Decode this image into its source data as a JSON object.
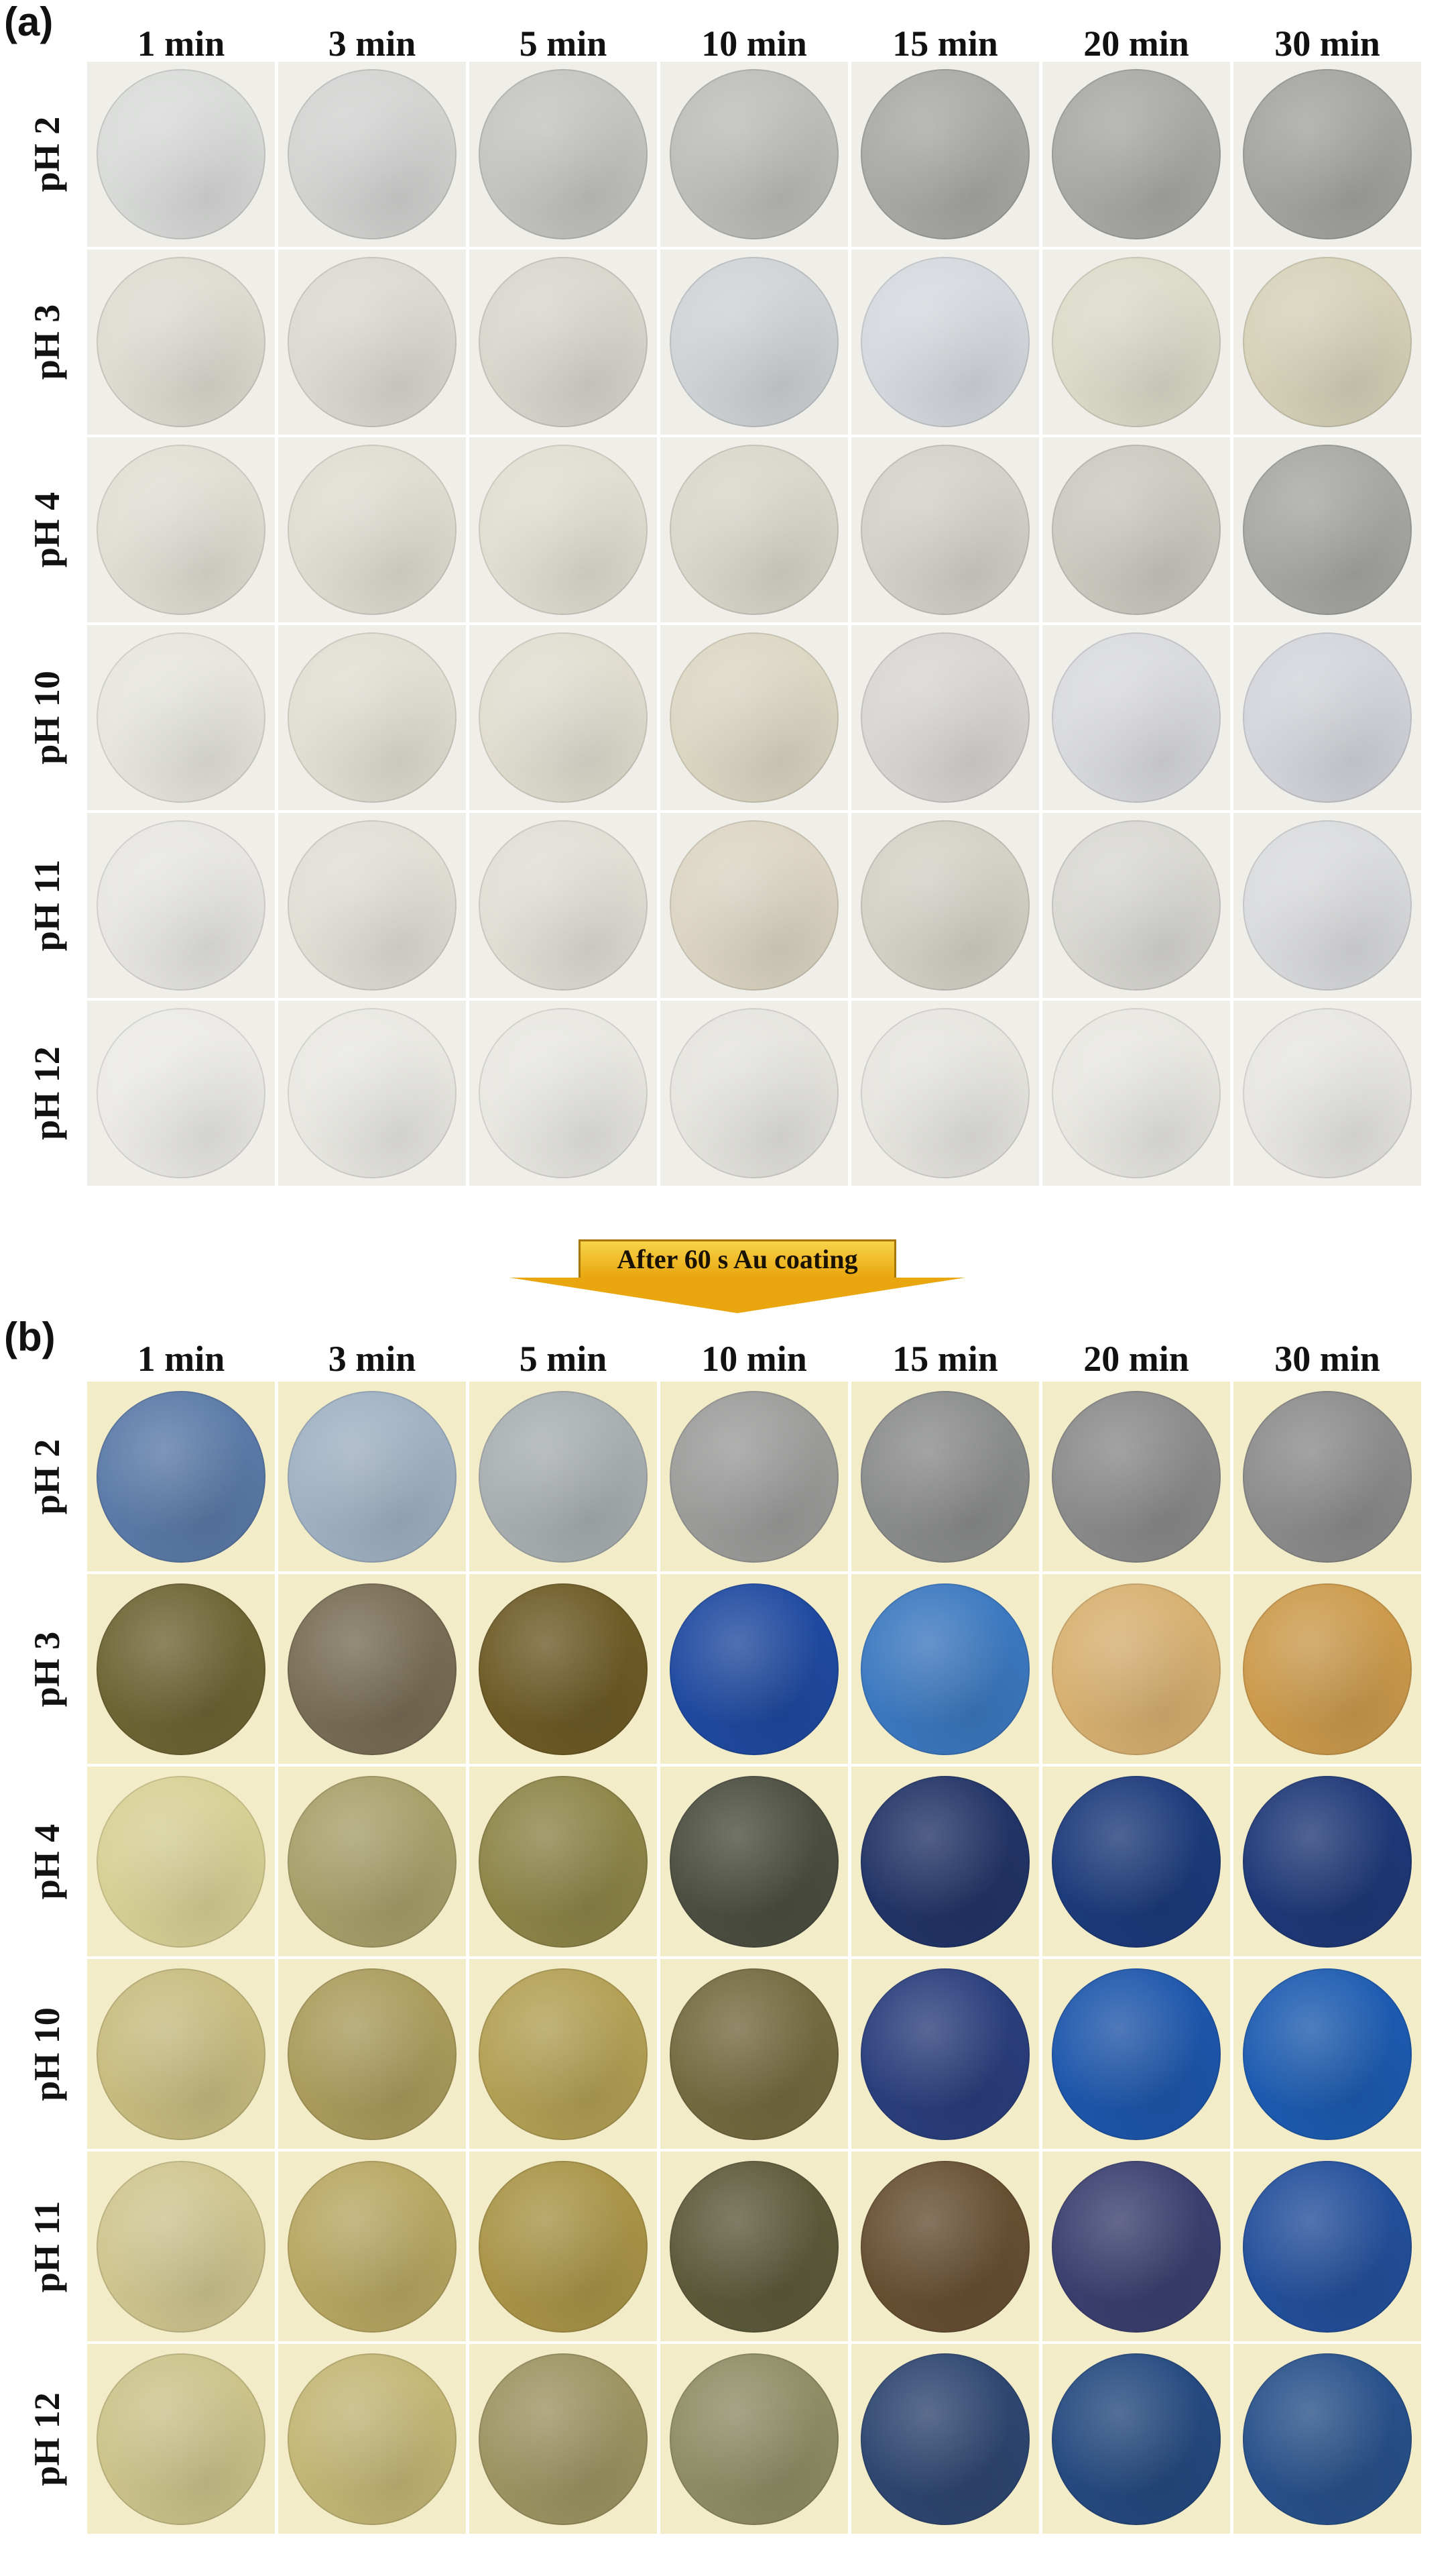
{
  "panel_a": {
    "label": "(a)",
    "columns": [
      "1 min",
      "3 min",
      "5 min",
      "10 min",
      "15 min",
      "20 min",
      "30 min"
    ],
    "rows": [
      "pH 2",
      "pH 3",
      "pH 4",
      "pH 10",
      "pH 11",
      "pH 12"
    ]
  },
  "arrow": {
    "label": "After 60 s Au coating"
  },
  "panel_b": {
    "label": "(b)",
    "columns": [
      "1 min",
      "3 min",
      "5 min",
      "10 min",
      "15 min",
      "20 min",
      "30 min"
    ],
    "rows": [
      "pH 2",
      "pH 3",
      "pH 4",
      "pH 10",
      "pH 11",
      "pH 12"
    ]
  },
  "sample_colors": {
    "before": [
      [
        "#d9dbd9",
        "#d3d4d2",
        "#c4c4c1",
        "#bdbdba",
        "#a9a9a6",
        "#a9a9a6",
        "#a4a4a1"
      ],
      [
        "#dedbd2",
        "#dcd9d2",
        "#d9d6ce",
        "#cfd3d6",
        "#d5d9de",
        "#dbdbc9",
        "#d6d1b8"
      ],
      [
        "#e0ded4",
        "#dfddd2",
        "#e0ded2",
        "#d9d6cb",
        "#d3d1c9",
        "#cbc9c0",
        "#a7a7a4"
      ],
      [
        "#e6e5de",
        "#e1ded3",
        "#e0ddd0",
        "#dcd7c3",
        "#d8d6d2",
        "#d9dade",
        "#d3d5db"
      ],
      [
        "#e7e6e2",
        "#e1ded6",
        "#e0ded5",
        "#dcd5c3",
        "#d4d1c7",
        "#d9d8d3",
        "#dadbdd"
      ],
      [
        "#ebeae6",
        "#e9e8e3",
        "#e8e7e2",
        "#e5e4df",
        "#e6e5e0",
        "#e8e7e2",
        "#e7e6e2"
      ]
    ],
    "after": [
      [
        "#5b7aa8",
        "#9fb1c3",
        "#a9afb1",
        "#9c9d9b",
        "#8b8d8c",
        "#8a8b8a",
        "#8b8c8b"
      ],
      [
        "#6e6534",
        "#786d55",
        "#6e5b26",
        "#1f4aa0",
        "#3c78c0",
        "#d7b071",
        "#cc9a4c"
      ],
      [
        "#d7d095",
        "#a8a06a",
        "#8d8548",
        "#4b4e40",
        "#223467",
        "#1d3a7a",
        "#1f3877"
      ],
      [
        "#c8bc80",
        "#ab9c5d",
        "#b3a055",
        "#746a40",
        "#2a3e7c",
        "#1e56ab",
        "#1d5bb0"
      ],
      [
        "#cfc58f",
        "#b8a763",
        "#a99447",
        "#5d5a3b",
        "#674f33",
        "#3b3f6e",
        "#234f9b"
      ],
      [
        "#cbc38a",
        "#c3b676",
        "#9d9462",
        "#8f8d66",
        "#2e4670",
        "#25497f",
        "#28518a"
      ]
    ]
  }
}
